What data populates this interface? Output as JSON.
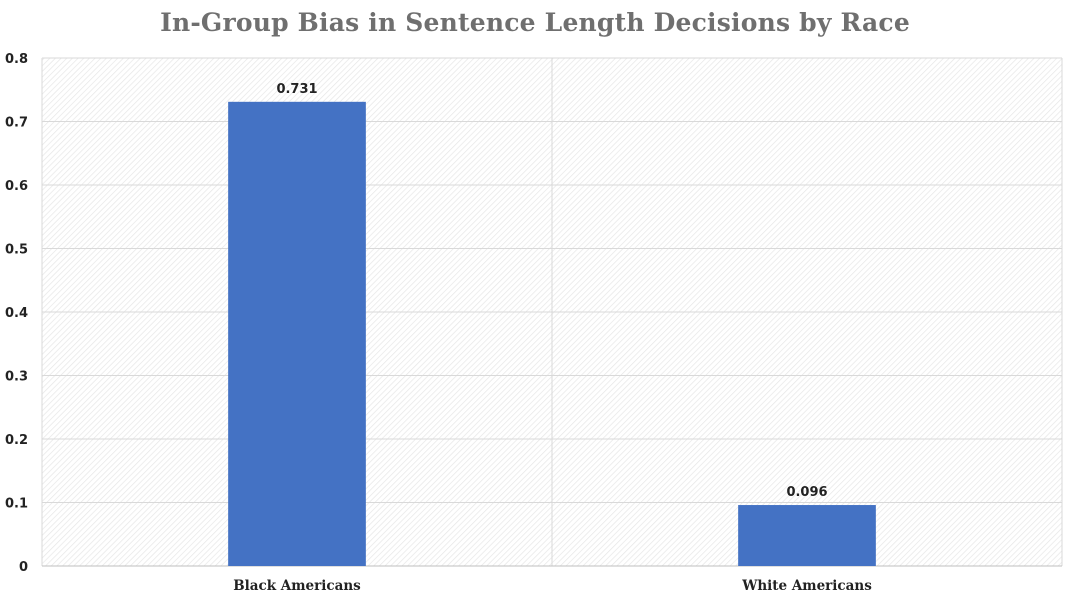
{
  "chart_data": {
    "type": "bar",
    "title": "In-Group Bias in Sentence Length Decisions by Race",
    "xlabel": "",
    "ylabel": "",
    "categories": [
      "Black Americans",
      "White Americans"
    ],
    "values": [
      0.731,
      0.096
    ],
    "data_labels": [
      "0.731",
      "0.096"
    ],
    "ylim": [
      0,
      0.8
    ],
    "yticks": [
      0,
      0.1,
      0.2,
      0.3,
      0.4,
      0.5,
      0.6,
      0.7,
      0.8
    ],
    "ytick_labels": [
      "0",
      "0.1",
      "0.2",
      "0.3",
      "0.4",
      "0.5",
      "0.6",
      "0.7",
      "0.8"
    ],
    "grid": true,
    "legend": "none",
    "bar_color": "#4472c4",
    "grid_color": "#d9d9d9",
    "title_color": "#6f6f6f"
  }
}
